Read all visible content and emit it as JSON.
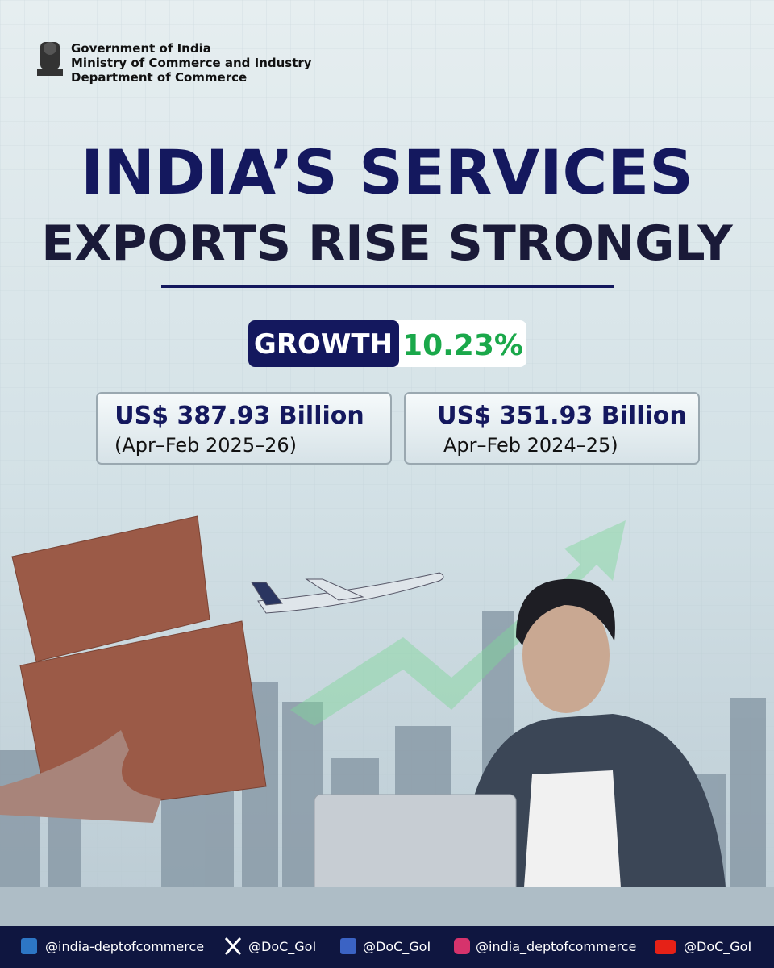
{
  "header": {
    "lines": [
      "Government of India",
      "Ministry of Commerce and Industry",
      "Department of Commerce"
    ]
  },
  "title": {
    "line1": "INDIA’S SERVICES",
    "line2": "EXPORTS RISE STRONGLY"
  },
  "growth": {
    "label": "GROWTH",
    "value": "10.23%"
  },
  "cards": [
    {
      "amount": "US$ 387.93 Billion",
      "period": "(Apr–Feb 2025–26)"
    },
    {
      "amount": "US$ 351.93 Billion",
      "period": "Apr–Feb 2024–25)"
    }
  ],
  "footer": {
    "handles": [
      "@india-deptofcommerce",
      "@DoC_GoI",
      "@DoC_GoI",
      "@india_deptofcommerce",
      "@DoC_GoI"
    ]
  }
}
